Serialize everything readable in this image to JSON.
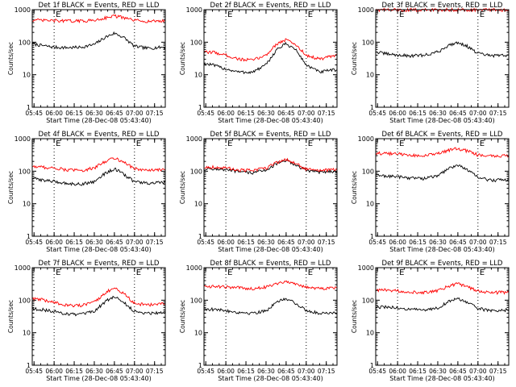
{
  "figure": {
    "x_ticks": [
      "05:45",
      "06:00",
      "06:15",
      "06:30",
      "06:45",
      "07:00",
      "07:15"
    ],
    "y_ticks": [
      "1",
      "10",
      "100",
      "1000"
    ],
    "ylabel": "Counts/sec",
    "xlabel": "Start Time (28-Dec-08 05:43:40)",
    "marker_labels": [
      "E",
      "E"
    ],
    "colors": {
      "events": "#000000",
      "lld": "#ff0000",
      "axes": "#000000"
    }
  },
  "chart_data": [
    {
      "type": "line",
      "title": "Det 1f BLACK = Events, RED = LLD",
      "xlabel": "Start Time (28-Dec-08 05:43:40)",
      "ylabel": "Counts/sec",
      "x_ticks": [
        "05:45",
        "06:00",
        "06:15",
        "06:30",
        "06:45",
        "07:00",
        "07:15"
      ],
      "y_ticks": [
        "1",
        "10",
        "100",
        "1000"
      ],
      "ylim": [
        1,
        1000
      ],
      "yscale": "log",
      "x": [
        "05:44",
        "05:50",
        "06:00",
        "06:10",
        "06:20",
        "06:30",
        "06:38",
        "06:45",
        "06:52",
        "07:00",
        "07:10",
        "07:20"
      ],
      "series": [
        {
          "values": [
            90,
            80,
            70,
            68,
            70,
            85,
            140,
            190,
            140,
            75,
            65,
            70
          ],
          "color": "#000000"
        },
        {
          "values": [
            480,
            470,
            460,
            450,
            450,
            470,
            560,
            650,
            560,
            470,
            440,
            450
          ],
          "color": "#ff0000"
        }
      ],
      "markers": [
        {
          "x": "06:00",
          "label": "E"
        },
        {
          "x": "07:00",
          "label": "E"
        }
      ]
    },
    {
      "type": "line",
      "title": "Det 2f BLACK = Events, RED = LLD",
      "xlabel": "Start Time (28-Dec-08 05:43:40)",
      "ylabel": "Counts/sec",
      "x_ticks": [
        "05:45",
        "06:00",
        "06:15",
        "06:30",
        "06:45",
        "07:00",
        "07:15"
      ],
      "y_ticks": [
        "1",
        "10",
        "100",
        "1000"
      ],
      "ylim": [
        1,
        1000
      ],
      "yscale": "log",
      "x": [
        "05:44",
        "05:50",
        "06:00",
        "06:10",
        "06:20",
        "06:30",
        "06:38",
        "06:45",
        "06:52",
        "07:00",
        "07:10",
        "07:20"
      ],
      "series": [
        {
          "values": [
            22,
            20,
            15,
            12,
            12,
            20,
            60,
            90,
            60,
            20,
            12,
            14
          ],
          "color": "#000000"
        },
        {
          "values": [
            48,
            50,
            40,
            30,
            28,
            40,
            90,
            120,
            85,
            40,
            30,
            38
          ],
          "color": "#ff0000"
        }
      ],
      "markers": [
        {
          "x": "06:00",
          "label": "E"
        },
        {
          "x": "07:00",
          "label": "E"
        }
      ]
    },
    {
      "type": "line",
      "title": "Det 3f BLACK = Events, RED = LLD",
      "xlabel": "Start Time (28-Dec-08 05:43:40)",
      "ylabel": "Counts/sec",
      "x_ticks": [
        "05:45",
        "06:00",
        "06:15",
        "06:30",
        "06:45",
        "07:00",
        "07:15"
      ],
      "y_ticks": [
        "1",
        "10",
        "100",
        "1000"
      ],
      "ylim": [
        1,
        1000
      ],
      "yscale": "log",
      "x": [
        "05:44",
        "05:50",
        "06:00",
        "06:10",
        "06:20",
        "06:30",
        "06:38",
        "06:45",
        "06:52",
        "07:00",
        "07:10",
        "07:20"
      ],
      "series": [
        {
          "values": [
            50,
            45,
            40,
            38,
            40,
            50,
            80,
            100,
            75,
            45,
            38,
            40
          ],
          "color": "#000000"
        },
        {
          "values": [
            990,
            990,
            985,
            980,
            980,
            985,
            1000,
            1000,
            995,
            985,
            980,
            985
          ],
          "color": "#ff0000"
        }
      ],
      "markers": [
        {
          "x": "06:00",
          "label": "E"
        },
        {
          "x": "07:00",
          "label": "E"
        }
      ]
    },
    {
      "type": "line",
      "title": "Det 4f BLACK = Events, RED = LLD",
      "xlabel": "Start Time (28-Dec-08 05:43:40)",
      "ylabel": "Counts/sec",
      "x_ticks": [
        "05:45",
        "06:00",
        "06:15",
        "06:30",
        "06:45",
        "07:00",
        "07:15"
      ],
      "y_ticks": [
        "1",
        "10",
        "100",
        "1000"
      ],
      "ylim": [
        1,
        1000
      ],
      "yscale": "log",
      "x": [
        "05:44",
        "05:50",
        "06:00",
        "06:10",
        "06:20",
        "06:30",
        "06:38",
        "06:45",
        "06:52",
        "07:00",
        "07:10",
        "07:20"
      ],
      "series": [
        {
          "values": [
            60,
            55,
            48,
            42,
            40,
            48,
            85,
            120,
            80,
            48,
            42,
            45
          ],
          "color": "#000000"
        },
        {
          "values": [
            140,
            135,
            125,
            110,
            105,
            125,
            200,
            260,
            190,
            120,
            105,
            110
          ],
          "color": "#ff0000"
        }
      ],
      "markers": [
        {
          "x": "06:00",
          "label": "E"
        },
        {
          "x": "07:00",
          "label": "E"
        }
      ]
    },
    {
      "type": "line",
      "title": "Det 5f BLACK = Events, RED = LLD",
      "xlabel": "Start Time (28-Dec-08 05:43:40)",
      "ylabel": "Counts/sec",
      "x_ticks": [
        "05:45",
        "06:00",
        "06:15",
        "06:30",
        "06:45",
        "07:00",
        "07:15"
      ],
      "y_ticks": [
        "1",
        "10",
        "100",
        "1000"
      ],
      "ylim": [
        1,
        1000
      ],
      "yscale": "log",
      "x": [
        "05:44",
        "05:50",
        "06:00",
        "06:10",
        "06:20",
        "06:30",
        "06:38",
        "06:45",
        "06:52",
        "07:00",
        "07:10",
        "07:20"
      ],
      "series": [
        {
          "values": [
            115,
            120,
            110,
            95,
            90,
            110,
            170,
            210,
            160,
            105,
            95,
            100
          ],
          "color": "#000000"
        },
        {
          "values": [
            130,
            135,
            125,
            110,
            105,
            125,
            190,
            230,
            175,
            115,
            105,
            110
          ],
          "color": "#ff0000"
        }
      ],
      "markers": [
        {
          "x": "06:00",
          "label": "E"
        },
        {
          "x": "07:00",
          "label": "E"
        }
      ]
    },
    {
      "type": "line",
      "title": "Det 6f BLACK = Events, RED = LLD",
      "xlabel": "Start Time (28-Dec-08 05:43:40)",
      "ylabel": "Counts/sec",
      "x_ticks": [
        "05:45",
        "06:00",
        "06:15",
        "06:30",
        "06:45",
        "07:00",
        "07:15"
      ],
      "y_ticks": [
        "1",
        "10",
        "100",
        "1000"
      ],
      "ylim": [
        1,
        1000
      ],
      "yscale": "log",
      "x": [
        "05:44",
        "05:50",
        "06:00",
        "06:10",
        "06:20",
        "06:30",
        "06:38",
        "06:45",
        "06:52",
        "07:00",
        "07:10",
        "07:20"
      ],
      "series": [
        {
          "values": [
            75,
            72,
            68,
            62,
            60,
            72,
            120,
            160,
            110,
            65,
            52,
            55
          ],
          "color": "#000000"
        },
        {
          "values": [
            360,
            350,
            340,
            310,
            300,
            340,
            440,
            500,
            420,
            320,
            290,
            300
          ],
          "color": "#ff0000"
        }
      ],
      "markers": [
        {
          "x": "06:00",
          "label": "E"
        },
        {
          "x": "07:00",
          "label": "E"
        }
      ]
    },
    {
      "type": "line",
      "title": "Det 7f BLACK = Events, RED = LLD",
      "xlabel": "Start Time (28-Dec-08 05:43:40)",
      "ylabel": "Counts/sec",
      "x_ticks": [
        "05:45",
        "06:00",
        "06:15",
        "06:30",
        "06:45",
        "07:00",
        "07:15"
      ],
      "y_ticks": [
        "1",
        "10",
        "100",
        "1000"
      ],
      "ylim": [
        1,
        1000
      ],
      "yscale": "log",
      "x": [
        "05:44",
        "05:50",
        "06:00",
        "06:10",
        "06:20",
        "06:30",
        "06:38",
        "06:45",
        "06:52",
        "07:00",
        "07:10",
        "07:20"
      ],
      "series": [
        {
          "values": [
            55,
            52,
            45,
            38,
            36,
            45,
            90,
            130,
            85,
            45,
            40,
            42
          ],
          "color": "#000000"
        },
        {
          "values": [
            110,
            105,
            85,
            70,
            68,
            85,
            170,
            240,
            160,
            80,
            72,
            78
          ],
          "color": "#ff0000"
        }
      ],
      "markers": [
        {
          "x": "06:00",
          "label": "E"
        },
        {
          "x": "07:00",
          "label": "E"
        }
      ]
    },
    {
      "type": "line",
      "title": "Det 8f BLACK = Events, RED = LLD",
      "xlabel": "Start Time (28-Dec-08 05:43:40)",
      "ylabel": "Counts/sec",
      "x_ticks": [
        "05:45",
        "06:00",
        "06:15",
        "06:30",
        "06:45",
        "07:00",
        "07:15"
      ],
      "y_ticks": [
        "1",
        "10",
        "100",
        "1000"
      ],
      "ylim": [
        1,
        1000
      ],
      "yscale": "log",
      "x": [
        "05:44",
        "05:50",
        "06:00",
        "06:10",
        "06:20",
        "06:30",
        "06:38",
        "06:45",
        "06:52",
        "07:00",
        "07:10",
        "07:20"
      ],
      "series": [
        {
          "values": [
            55,
            52,
            48,
            42,
            40,
            48,
            85,
            115,
            80,
            48,
            40,
            42
          ],
          "color": "#000000"
        },
        {
          "values": [
            270,
            265,
            255,
            240,
            230,
            255,
            330,
            380,
            320,
            250,
            230,
            240
          ],
          "color": "#ff0000"
        }
      ],
      "markers": [
        {
          "x": "06:00",
          "label": "E"
        },
        {
          "x": "07:00",
          "label": "E"
        }
      ]
    },
    {
      "type": "line",
      "title": "Det 9f BLACK = Events, RED = LLD",
      "xlabel": "Start Time (28-Dec-08 05:43:40)",
      "ylabel": "Counts/sec",
      "x_ticks": [
        "05:45",
        "06:00",
        "06:15",
        "06:30",
        "06:45",
        "07:00",
        "07:15"
      ],
      "y_ticks": [
        "1",
        "10",
        "100",
        "1000"
      ],
      "ylim": [
        1,
        1000
      ],
      "yscale": "log",
      "x": [
        "05:44",
        "05:50",
        "06:00",
        "06:10",
        "06:20",
        "06:30",
        "06:38",
        "06:45",
        "06:52",
        "07:00",
        "07:10",
        "07:20"
      ],
      "series": [
        {
          "values": [
            60,
            62,
            58,
            52,
            50,
            58,
            90,
            115,
            85,
            55,
            48,
            50
          ],
          "color": "#000000"
        },
        {
          "values": [
            200,
            205,
            195,
            180,
            175,
            195,
            270,
            320,
            260,
            190,
            170,
            175
          ],
          "color": "#ff0000"
        }
      ],
      "markers": [
        {
          "x": "06:00",
          "label": "E"
        },
        {
          "x": "07:00",
          "label": "E"
        }
      ]
    }
  ]
}
